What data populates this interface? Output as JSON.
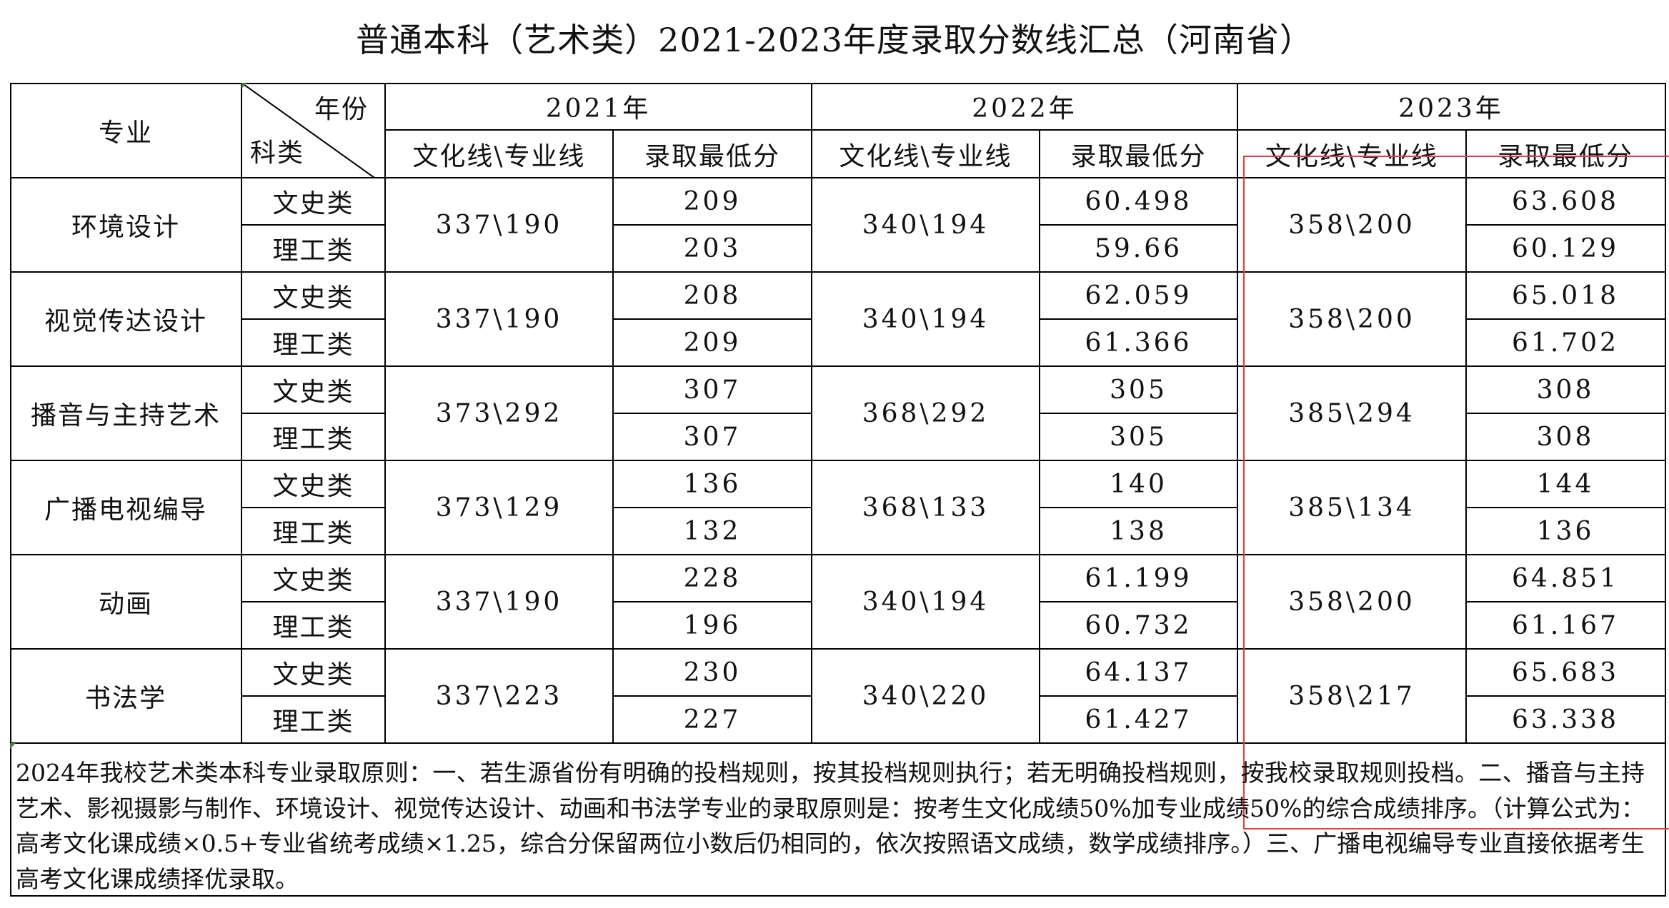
{
  "title": "普通本科（艺术类）2021-2023年度录取分数线汇总（河南省）",
  "header": {
    "major": "专业",
    "year": "年份",
    "category": "科类",
    "years": [
      "2021年",
      "2022年",
      "2023年"
    ],
    "line_label": "文化线\\专业线",
    "min_label": "录取最低分"
  },
  "rows": [
    {
      "major": "环境设计",
      "lines": [
        "337\\190",
        "340\\194",
        "358\\200"
      ],
      "subs": [
        {
          "cat": "文史类",
          "mins": [
            "209",
            "60.498",
            "63.608"
          ]
        },
        {
          "cat": "理工类",
          "mins": [
            "203",
            "59.66",
            "60.129"
          ]
        }
      ]
    },
    {
      "major": "视觉传达设计",
      "lines": [
        "337\\190",
        "340\\194",
        "358\\200"
      ],
      "subs": [
        {
          "cat": "文史类",
          "mins": [
            "208",
            "62.059",
            "65.018"
          ]
        },
        {
          "cat": "理工类",
          "mins": [
            "209",
            "61.366",
            "61.702"
          ]
        }
      ]
    },
    {
      "major": "播音与主持艺术",
      "lines": [
        "373\\292",
        "368\\292",
        "385\\294"
      ],
      "subs": [
        {
          "cat": "文史类",
          "mins": [
            "307",
            "305",
            "308"
          ]
        },
        {
          "cat": "理工类",
          "mins": [
            "307",
            "305",
            "308"
          ]
        }
      ]
    },
    {
      "major": "广播电视编导",
      "lines": [
        "373\\129",
        "368\\133",
        "385\\134"
      ],
      "subs": [
        {
          "cat": "文史类",
          "mins": [
            "136",
            "140",
            "144"
          ]
        },
        {
          "cat": "理工类",
          "mins": [
            "132",
            "138",
            "136"
          ]
        }
      ]
    },
    {
      "major": "动画",
      "lines": [
        "337\\190",
        "340\\194",
        "358\\200"
      ],
      "subs": [
        {
          "cat": "文史类",
          "mins": [
            "228",
            "61.199",
            "64.851"
          ]
        },
        {
          "cat": "理工类",
          "mins": [
            "196",
            "60.732",
            "61.167"
          ]
        }
      ]
    },
    {
      "major": "书法学",
      "lines": [
        "337\\223",
        "340\\220",
        "358\\217"
      ],
      "subs": [
        {
          "cat": "文史类",
          "mins": [
            "230",
            "64.137",
            "65.683"
          ]
        },
        {
          "cat": "理工类",
          "mins": [
            "227",
            "61.427",
            "63.338"
          ]
        }
      ]
    }
  ],
  "note": "2024年我校艺术类本科专业录取原则：一、若生源省份有明确的投档规则，按其投档规则执行；若无明确投档规则，按我校录取规则投档。二、播音与主持艺术、影视摄影与制作、环境设计、视觉传达设计、动画和书法学专业的录取原则是：按考生文化成绩50%加专业成绩50%的综合成绩排序。（计算公式为：高考文化课成绩×0.5+专业省统考成绩×1.25，综合分保留两位小数后仍相同的，依次按照语文成绩，数学成绩排序。）三、广播电视编导专业直接依据考生高考文化课成绩择优录取。",
  "colors": {
    "grid": "#000000",
    "highlight": "#e63b3b",
    "text": "#111111"
  }
}
